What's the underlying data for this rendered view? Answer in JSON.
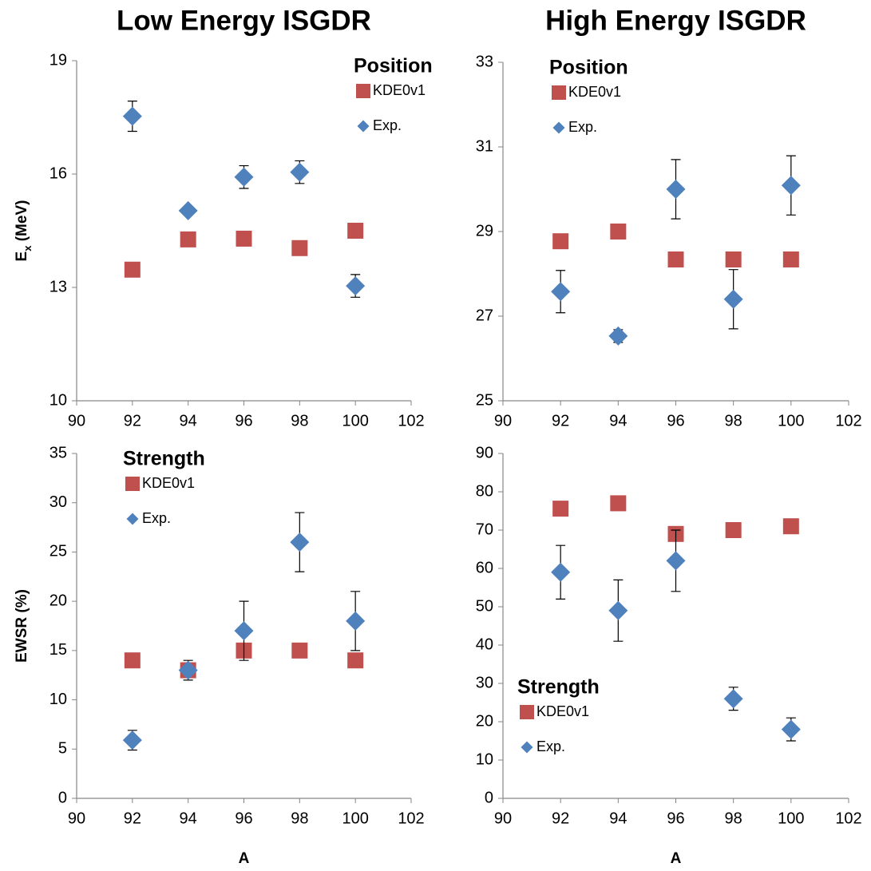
{
  "chart_data": [
    {
      "type": "scatter",
      "title": "Low Energy ISGDR",
      "ylabel": [
        "E",
        "x",
        " (MeV)"
      ],
      "legend_title": "Position",
      "legend": "upper right",
      "x": [
        92,
        94,
        96,
        98,
        100
      ],
      "xlim": [
        90,
        102
      ],
      "xticks": [
        90,
        92,
        94,
        96,
        98,
        100,
        102
      ],
      "ylim": [
        10,
        19
      ],
      "yticks": [
        10,
        13,
        16,
        19
      ],
      "series": [
        {
          "name": "KDE0v1",
          "color": "#c0504d",
          "marker": "square",
          "values": [
            13.47,
            14.27,
            14.29,
            14.04,
            14.5
          ]
        },
        {
          "name": "Exp.",
          "color": "#4f81bd",
          "marker": "diamond",
          "values": [
            17.53,
            15.03,
            15.92,
            16.05,
            13.04
          ],
          "errors": [
            0.4,
            0.1,
            0.3,
            0.3,
            0.3
          ]
        }
      ]
    },
    {
      "type": "scatter",
      "title": "High Energy ISGDR",
      "legend_title": "Position",
      "legend": "upper left",
      "x": [
        92,
        94,
        96,
        98,
        100
      ],
      "xlim": [
        90,
        102
      ],
      "xticks": [
        90,
        92,
        94,
        96,
        98,
        100,
        102
      ],
      "ylim": [
        25,
        33
      ],
      "yticks": [
        25,
        27,
        29,
        31,
        33
      ],
      "series": [
        {
          "name": "KDE0v1",
          "color": "#c0504d",
          "marker": "square",
          "values": [
            28.77,
            29.0,
            28.34,
            28.34,
            28.34
          ]
        },
        {
          "name": "Exp.",
          "color": "#4f81bd",
          "marker": "diamond",
          "values": [
            27.58,
            26.53,
            30.0,
            27.4,
            30.09
          ],
          "errors": [
            0.5,
            0.15,
            0.7,
            0.7,
            0.7
          ]
        }
      ]
    },
    {
      "type": "scatter",
      "ylabel": [
        "EWSR (%)"
      ],
      "xlabel": "A",
      "legend_title": "Strength",
      "legend": "upper left",
      "x": [
        92,
        94,
        96,
        98,
        100
      ],
      "xlim": [
        90,
        102
      ],
      "xticks": [
        90,
        92,
        94,
        96,
        98,
        100,
        102
      ],
      "ylim": [
        0,
        35
      ],
      "yticks": [
        0,
        5,
        10,
        15,
        20,
        25,
        30,
        35
      ],
      "series": [
        {
          "name": "KDE0v1",
          "color": "#c0504d",
          "marker": "square",
          "values": [
            14,
            13,
            15,
            15,
            14
          ]
        },
        {
          "name": "Exp.",
          "color": "#4f81bd",
          "marker": "diamond",
          "values": [
            5.9,
            13,
            17,
            26,
            18
          ],
          "errors": [
            1,
            1,
            3,
            3,
            3
          ]
        }
      ]
    },
    {
      "type": "scatter",
      "xlabel": "A",
      "legend_title": "Strength",
      "legend": "lower left",
      "x": [
        92,
        94,
        96,
        98,
        100
      ],
      "xlim": [
        90,
        102
      ],
      "xticks": [
        90,
        92,
        94,
        96,
        98,
        100,
        102
      ],
      "ylim": [
        0,
        90
      ],
      "yticks": [
        0,
        10,
        20,
        30,
        40,
        50,
        60,
        70,
        80,
        90
      ],
      "series": [
        {
          "name": "KDE0v1",
          "color": "#c0504d",
          "marker": "square",
          "values": [
            75.6,
            77,
            69,
            70,
            71
          ]
        },
        {
          "name": "Exp.",
          "color": "#4f81bd",
          "marker": "diamond",
          "values": [
            59,
            49,
            62,
            26,
            18
          ],
          "errors": [
            7,
            8,
            8,
            3,
            3
          ]
        }
      ]
    }
  ]
}
